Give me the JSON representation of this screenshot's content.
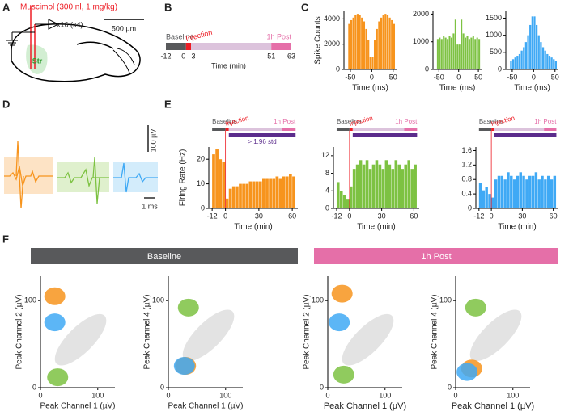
{
  "panel_labels": [
    "A",
    "B",
    "C",
    "D",
    "E",
    "F"
  ],
  "schematic": {
    "drug": "Muscimol (300 nl, 1 mg/kg)",
    "probe": "x16 (x4)",
    "scale": "500 µm",
    "region": "Str"
  },
  "waveforms": {
    "scale_v": "100 µV",
    "scale_t": "1 ms"
  },
  "timeline": {
    "labels": [
      "Baseline",
      "Injection",
      "1h Post"
    ],
    "ticks": [
      -12,
      0,
      3,
      51,
      63
    ],
    "x_label": "Time (min)",
    "colors": [
      "#58595b",
      "#ed1c24",
      "#dcc3dc",
      "#e56fa8"
    ]
  },
  "groups": [
    {
      "label": "Baseline",
      "color": "#58595b"
    },
    {
      "label": "1h Post",
      "color": "#e56fa8"
    }
  ],
  "chart_data": [
    {
      "type": "histogram",
      "x_label": "Time (ms)",
      "y_label": "Spike Counts",
      "color": "#f7941d",
      "bins": [
        -55,
        -50,
        -45,
        -40,
        -35,
        -30,
        -25,
        -20,
        -15,
        -10,
        -5,
        0,
        5,
        10,
        15,
        20,
        25,
        30,
        35,
        40,
        45,
        50,
        55
      ],
      "values": [
        3600,
        3900,
        4100,
        4300,
        4400,
        4300,
        4100,
        3800,
        3200,
        2300,
        1000,
        1000,
        2300,
        3200,
        3800,
        4100,
        4300,
        4400,
        4300,
        4100,
        3900,
        3600
      ],
      "xlim": [
        -65,
        58
      ],
      "xticks": [
        -50,
        0,
        50
      ],
      "ylim": [
        0,
        4600
      ],
      "yticks": [
        0,
        2000,
        4000
      ]
    },
    {
      "type": "histogram",
      "x_label": "Time (ms)",
      "color": "#7dc242",
      "bins": [
        -55,
        -50,
        -45,
        -40,
        -35,
        -30,
        -25,
        -20,
        -15,
        -10,
        -5,
        0,
        5,
        10,
        15,
        20,
        25,
        30,
        35,
        40,
        45,
        50,
        55
      ],
      "values": [
        1100,
        1150,
        1100,
        1200,
        1150,
        1100,
        1200,
        1150,
        1300,
        1800,
        900,
        900,
        1800,
        1300,
        1150,
        1200,
        1100,
        1150,
        1200,
        1100,
        1150,
        1100
      ],
      "xlim": [
        -65,
        58
      ],
      "xticks": [
        -50,
        0,
        50
      ],
      "ylim": [
        0,
        2100
      ],
      "yticks": [
        0,
        1000,
        2000
      ]
    },
    {
      "type": "histogram",
      "x_label": "Time (ms)",
      "color": "#3fa9f5",
      "bins": [
        -55,
        -50,
        -45,
        -40,
        -35,
        -30,
        -25,
        -20,
        -15,
        -10,
        -5,
        0,
        5,
        10,
        15,
        20,
        25,
        30,
        35,
        40,
        45,
        50,
        55
      ],
      "values": [
        250,
        300,
        350,
        400,
        450,
        550,
        650,
        800,
        1000,
        1300,
        1550,
        1550,
        1300,
        1000,
        800,
        650,
        550,
        450,
        400,
        350,
        300,
        250
      ],
      "xlim": [
        -65,
        58
      ],
      "xticks": [
        -50,
        0,
        50
      ],
      "ylim": [
        0,
        1700
      ],
      "yticks": [
        0,
        500,
        1000,
        1500
      ]
    },
    {
      "type": "histogram",
      "x_label": "Time (min)",
      "y_label": "Firing Rate (Hz)",
      "color": "#f7941d",
      "significance_label": "> 1.96 std",
      "bins": [
        -12,
        -9,
        -6,
        -3,
        0,
        3,
        6,
        9,
        12,
        15,
        18,
        21,
        24,
        27,
        30,
        33,
        36,
        39,
        42,
        45,
        48,
        51,
        54,
        57,
        60,
        63
      ],
      "values": [
        22,
        24,
        20,
        19,
        4,
        8,
        9,
        9,
        10,
        10,
        10,
        11,
        11,
        11,
        11,
        12,
        12,
        12,
        12,
        13,
        12,
        13,
        13,
        14,
        13
      ],
      "xlim": [
        -15,
        65
      ],
      "xticks": [
        -12,
        0,
        30,
        60
      ],
      "ylim": [
        0,
        25
      ],
      "yticks": [
        0,
        10,
        20
      ]
    },
    {
      "type": "histogram",
      "x_label": "Time (min)",
      "color": "#7dc242",
      "bins": [
        -12,
        -9,
        -6,
        -3,
        0,
        3,
        6,
        9,
        12,
        15,
        18,
        21,
        24,
        27,
        30,
        33,
        36,
        39,
        42,
        45,
        48,
        51,
        54,
        57,
        60,
        63
      ],
      "values": [
        6,
        4,
        3,
        2,
        5,
        9,
        10,
        11,
        10,
        11,
        9,
        10,
        11,
        10,
        9,
        11,
        10,
        9,
        11,
        10,
        9,
        10,
        11,
        9,
        10
      ],
      "xlim": [
        -15,
        65
      ],
      "xticks": [
        -12,
        0,
        30,
        60
      ],
      "ylim": [
        0,
        14
      ],
      "yticks": [
        0,
        4,
        8,
        12
      ]
    },
    {
      "type": "histogram",
      "x_label": "Time (min)",
      "color": "#3fa9f5",
      "bins": [
        -12,
        -9,
        -6,
        -3,
        0,
        3,
        6,
        9,
        12,
        15,
        18,
        21,
        24,
        27,
        30,
        33,
        36,
        39,
        42,
        45,
        48,
        51,
        54,
        57,
        60,
        63
      ],
      "values": [
        0.7,
        0.5,
        0.6,
        0.4,
        0.3,
        0.8,
        0.9,
        0.9,
        0.8,
        1.0,
        0.9,
        0.8,
        0.9,
        1.0,
        0.9,
        0.8,
        0.9,
        0.9,
        1.0,
        0.8,
        0.9,
        0.8,
        0.9,
        0.8,
        0.9
      ],
      "xlim": [
        -15,
        65
      ],
      "xticks": [
        -12,
        0,
        30,
        60
      ],
      "ylim": [
        0,
        1.7
      ],
      "yticks": [
        0,
        0.4,
        0.8,
        1.2,
        1.6
      ]
    },
    {
      "type": "scatter",
      "x_label": "Peak Channel 1 (µV)",
      "y_label": "Peak Channel 2 (µV)",
      "xlim": [
        0,
        130
      ],
      "ylim": [
        0,
        128
      ],
      "xticks": [
        0,
        100
      ],
      "yticks": [
        0,
        100
      ],
      "series": [
        {
          "color": "#cccccc",
          "x": [
            70
          ],
          "y": [
            55
          ]
        },
        {
          "color": "#f7941d",
          "x": [
            25
          ],
          "y": [
            105
          ]
        },
        {
          "color": "#3fa9f5",
          "x": [
            25
          ],
          "y": [
            75
          ]
        },
        {
          "color": "#7dc242",
          "x": [
            30
          ],
          "y": [
            12
          ]
        }
      ]
    },
    {
      "type": "scatter",
      "x_label": "Peak Channel 1 (µV)",
      "y_label": "Peak Channel 4 (µV)",
      "xlim": [
        0,
        130
      ],
      "ylim": [
        0,
        128
      ],
      "xticks": [
        0,
        100
      ],
      "yticks": [
        0,
        100
      ],
      "series": [
        {
          "color": "#cccccc",
          "x": [
            70
          ],
          "y": [
            60
          ]
        },
        {
          "color": "#7dc242",
          "x": [
            35
          ],
          "y": [
            92
          ]
        },
        {
          "color": "#f7941d",
          "x": [
            30
          ],
          "y": [
            25
          ]
        },
        {
          "color": "#3fa9f5",
          "x": [
            28
          ],
          "y": [
            25
          ]
        }
      ]
    },
    {
      "type": "scatter",
      "x_label": "Peak Channel 1 (µV)",
      "y_label": "Peak Channel 2 (µV)",
      "xlim": [
        0,
        130
      ],
      "ylim": [
        0,
        128
      ],
      "xticks": [
        0,
        100
      ],
      "yticks": [
        0,
        100
      ],
      "series": [
        {
          "color": "#cccccc",
          "x": [
            70
          ],
          "y": [
            55
          ]
        },
        {
          "color": "#f7941d",
          "x": [
            25
          ],
          "y": [
            108
          ]
        },
        {
          "color": "#3fa9f5",
          "x": [
            20
          ],
          "y": [
            75
          ]
        },
        {
          "color": "#7dc242",
          "x": [
            28
          ],
          "y": [
            15
          ]
        }
      ]
    },
    {
      "type": "scatter",
      "x_label": "Peak Channel 1 (µV)",
      "y_label": "Peak Channel 4 (µV)",
      "xlim": [
        0,
        130
      ],
      "ylim": [
        0,
        128
      ],
      "xticks": [
        0,
        100
      ],
      "yticks": [
        0,
        100
      ],
      "series": [
        {
          "color": "#cccccc",
          "x": [
            70
          ],
          "y": [
            60
          ]
        },
        {
          "color": "#7dc242",
          "x": [
            35
          ],
          "y": [
            92
          ]
        },
        {
          "color": "#f7941d",
          "x": [
            28
          ],
          "y": [
            22
          ]
        },
        {
          "color": "#3fa9f5",
          "x": [
            20
          ],
          "y": [
            18
          ]
        }
      ]
    }
  ]
}
